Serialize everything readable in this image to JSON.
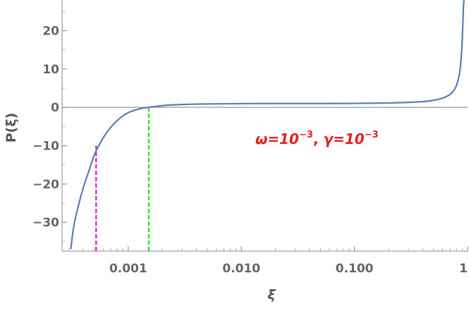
{
  "chart_data": {
    "type": "line",
    "x_scale": "log",
    "xlabel": "ξ",
    "ylabel": "P(ξ)",
    "xlim": [
      0.00026,
      1.0
    ],
    "ylim": [
      -37.5,
      28
    ],
    "x_ticks": [
      {
        "value": 0.001,
        "label": "0.001"
      },
      {
        "value": 0.01,
        "label": "0.010"
      },
      {
        "value": 0.1,
        "label": "0.100"
      },
      {
        "value": 1,
        "label": "1"
      }
    ],
    "y_ticks": [
      {
        "value": 20,
        "label": "20"
      },
      {
        "value": 10,
        "label": "10"
      },
      {
        "value": 0,
        "label": "0"
      },
      {
        "value": -10,
        "label": "-10"
      },
      {
        "value": -20,
        "label": "-20"
      },
      {
        "value": -30,
        "label": "-30"
      }
    ],
    "series": [
      {
        "color": "#5b7fb5",
        "x": [
          0.00031,
          0.00033,
          0.00036,
          0.0004,
          0.00045,
          0.0005,
          0.00056,
          0.00063,
          0.0007,
          0.0008,
          0.0009,
          0.001,
          0.0011,
          0.0012,
          0.0013,
          0.0014,
          0.00152,
          0.0017,
          0.002,
          0.0025,
          0.003,
          0.004,
          0.006,
          0.01,
          0.02,
          0.05,
          0.1,
          0.2,
          0.3,
          0.4,
          0.5,
          0.6,
          0.7,
          0.75,
          0.8,
          0.85,
          0.87,
          0.89,
          0.9,
          0.91,
          0.92,
          0.93
        ],
        "y": [
          -37,
          -31,
          -26,
          -21,
          -16.5,
          -12.5,
          -9.5,
          -7,
          -5.2,
          -3.4,
          -2.2,
          -1.4,
          -0.9,
          -0.55,
          -0.3,
          -0.15,
          0.0,
          0.2,
          0.45,
          0.65,
          0.75,
          0.85,
          0.92,
          0.97,
          1.0,
          1.0,
          1.05,
          1.15,
          1.3,
          1.5,
          1.85,
          2.4,
          3.4,
          4.3,
          5.8,
          9.0,
          11.5,
          15.5,
          18.5,
          22.5,
          26.5,
          28
        ]
      }
    ],
    "reference_lines": [
      {
        "orientation": "horizontal",
        "y": 0,
        "color": "#808080",
        "style": "solid"
      },
      {
        "orientation": "vertical",
        "x": 0.00052,
        "y_from": -37.5,
        "y_to": -10,
        "color": "#d61ad6",
        "style": "dashed"
      },
      {
        "orientation": "vertical",
        "x": 0.00152,
        "y_from": -37.5,
        "y_to": 0,
        "color": "#22dd22",
        "style": "dashed"
      }
    ],
    "annotation": {
      "omega": "ω=10",
      "omega_exp": "−3",
      "sep": ", ",
      "gamma": "γ=10",
      "gamma_exp": "−3",
      "color": "#e8211d"
    },
    "grid": false,
    "legend": "none"
  }
}
